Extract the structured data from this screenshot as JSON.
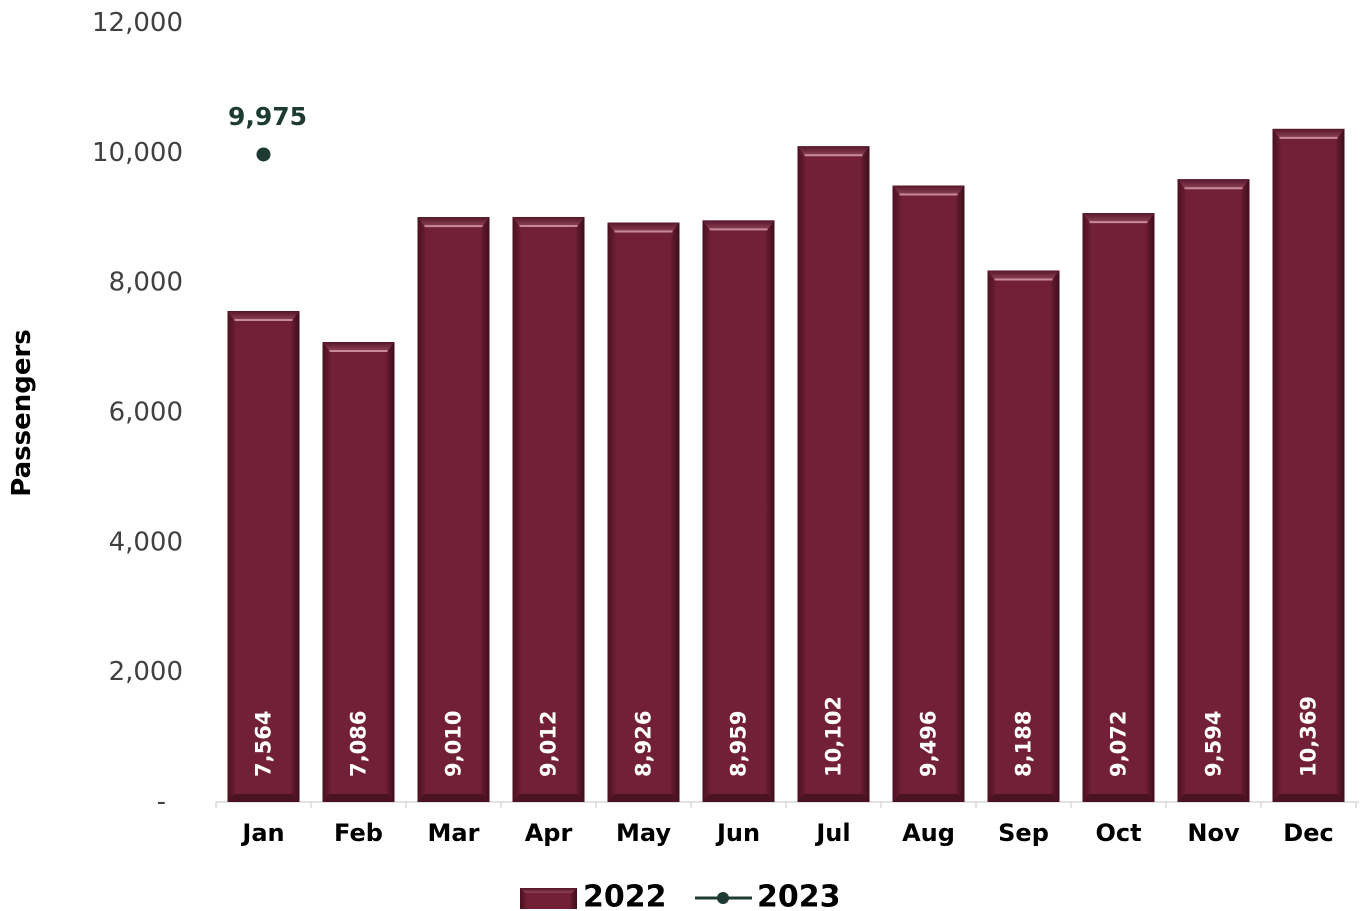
{
  "chart_data": {
    "type": "bar",
    "categories": [
      "Jan",
      "Feb",
      "Mar",
      "Apr",
      "May",
      "Jun",
      "Jul",
      "Aug",
      "Sep",
      "Oct",
      "Nov",
      "Dec"
    ],
    "series": [
      {
        "name": "2022",
        "type": "bar",
        "values": [
          7564,
          7086,
          9010,
          9012,
          8926,
          8959,
          10102,
          9496,
          8188,
          9072,
          9594,
          10369
        ],
        "labels": [
          "7,564",
          "7,086",
          "9,010",
          "9,012",
          "8,926",
          "8,959",
          "10,102",
          "9,496",
          "8,188",
          "9,072",
          "9,594",
          "10,369"
        ],
        "color": "#722038"
      },
      {
        "name": "2023",
        "type": "line",
        "values": [
          9975,
          null,
          null,
          null,
          null,
          null,
          null,
          null,
          null,
          null,
          null,
          null
        ],
        "labels": [
          "9,975",
          null,
          null,
          null,
          null,
          null,
          null,
          null,
          null,
          null,
          null,
          null
        ],
        "color": "#1d3b32"
      }
    ],
    "ylabel": "Passengers",
    "ylim": [
      0,
      12000
    ],
    "yticks": [
      0,
      2000,
      4000,
      6000,
      8000,
      10000,
      12000
    ],
    "ytick_labels": [
      "-",
      "2,000",
      "4,000",
      "6,000",
      "8,000",
      "10,000",
      "12,000"
    ],
    "legend": "bottom",
    "grid": false
  }
}
